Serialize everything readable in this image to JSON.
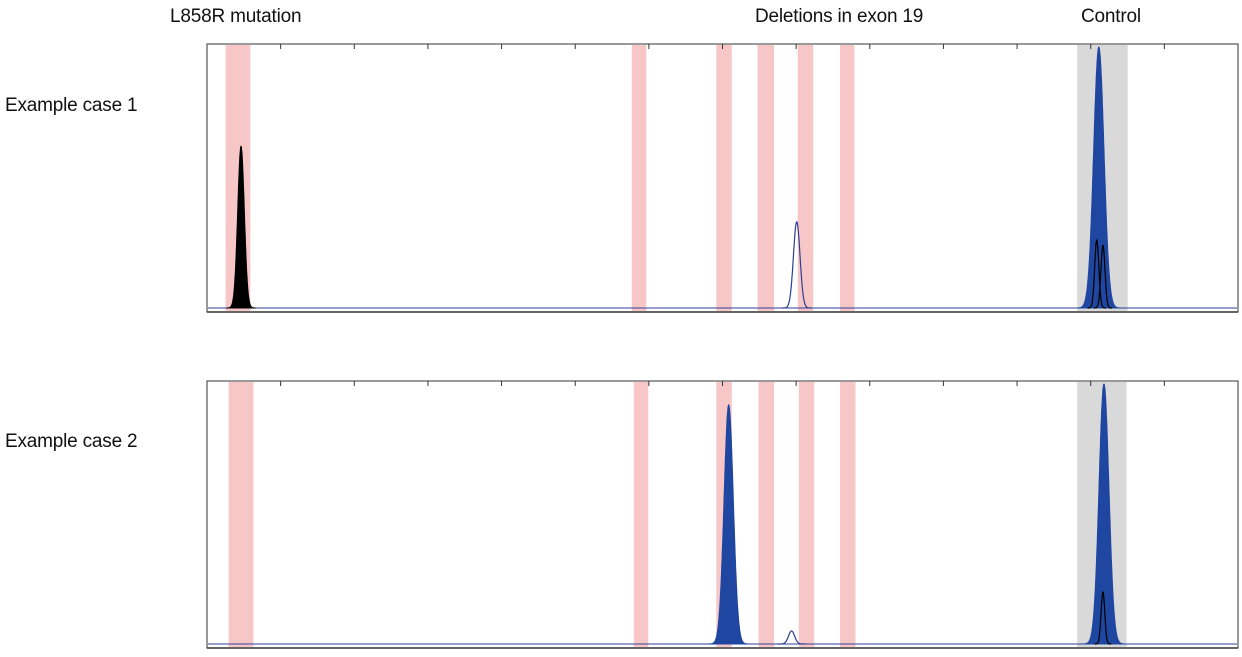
{
  "header": {
    "labels": [
      "L858R mutation",
      "Deletions in exon 19",
      "Control"
    ]
  },
  "rows": [
    {
      "label": "Example case 1"
    },
    {
      "label": "Example case 2"
    }
  ],
  "colors": {
    "mutation_band": "#f7c7c7",
    "control_band": "#d9d9d9",
    "filled_peak": "#1f46a0",
    "outline_peak": "#2c3f94",
    "black_peak": "#000000",
    "axis": "#333333"
  },
  "chart_data": [
    {
      "type": "area",
      "title": "",
      "xlabel": "",
      "ylabel": "",
      "xlim": [
        0,
        1000
      ],
      "ylim": [
        0,
        100
      ],
      "grid": false,
      "bands": [
        {
          "label": "L858R mutation",
          "x": [
            18,
            42
          ],
          "color": "#f7c7c7"
        },
        {
          "label": "Deletions in exon 19",
          "x": [
            412,
            426
          ],
          "color": "#f7c7c7"
        },
        {
          "label": "Deletions in exon 19",
          "x": [
            494,
            509
          ],
          "color": "#f7c7c7"
        },
        {
          "label": "Deletions in exon 19",
          "x": [
            534,
            550
          ],
          "color": "#f7c7c7"
        },
        {
          "label": "Deletions in exon 19",
          "x": [
            573,
            588
          ],
          "color": "#f7c7c7"
        },
        {
          "label": "Deletions in exon 19",
          "x": [
            614,
            628
          ],
          "color": "#f7c7c7"
        },
        {
          "label": "Control",
          "x": [
            844,
            893
          ],
          "color": "#d9d9d9"
        }
      ],
      "peaks": [
        {
          "center": 33,
          "height": 62,
          "width": 3.2,
          "style": "filled",
          "color": "#000000"
        },
        {
          "center": 572,
          "height": 33,
          "width": 3.2,
          "style": "outline",
          "color": "#2c3f94"
        },
        {
          "center": 865,
          "height": 100,
          "width": 5.0,
          "style": "filled",
          "color": "#1f46a0"
        },
        {
          "center": 863,
          "height": 26,
          "width": 2.0,
          "style": "outline",
          "color": "#000000"
        },
        {
          "center": 869,
          "height": 24,
          "width": 2.0,
          "style": "outline",
          "color": "#000000"
        }
      ]
    },
    {
      "type": "area",
      "title": "",
      "xlabel": "",
      "ylabel": "",
      "xlim": [
        0,
        1000
      ],
      "ylim": [
        0,
        100
      ],
      "grid": false,
      "bands": [
        {
          "label": "L858R mutation",
          "x": [
            21,
            45
          ],
          "color": "#f7c7c7"
        },
        {
          "label": "Deletions in exon 19",
          "x": [
            414,
            428
          ],
          "color": "#f7c7c7"
        },
        {
          "label": "Deletions in exon 19",
          "x": [
            494,
            509
          ],
          "color": "#f7c7c7"
        },
        {
          "label": "Deletions in exon 19",
          "x": [
            535,
            550
          ],
          "color": "#f7c7c7"
        },
        {
          "label": "Deletions in exon 19",
          "x": [
            574,
            589
          ],
          "color": "#f7c7c7"
        },
        {
          "label": "Deletions in exon 19",
          "x": [
            614,
            629
          ],
          "color": "#f7c7c7"
        },
        {
          "label": "Control",
          "x": [
            844,
            892
          ],
          "color": "#d9d9d9"
        }
      ],
      "peaks": [
        {
          "center": 506,
          "height": 92,
          "width": 4.5,
          "style": "filled",
          "color": "#1f46a0"
        },
        {
          "center": 567,
          "height": 5,
          "width": 3.0,
          "style": "outline",
          "color": "#2c3f94"
        },
        {
          "center": 870,
          "height": 100,
          "width": 4.8,
          "style": "filled",
          "color": "#1f46a0"
        },
        {
          "center": 869,
          "height": 20,
          "width": 1.8,
          "style": "outline",
          "color": "#000000"
        }
      ]
    }
  ]
}
